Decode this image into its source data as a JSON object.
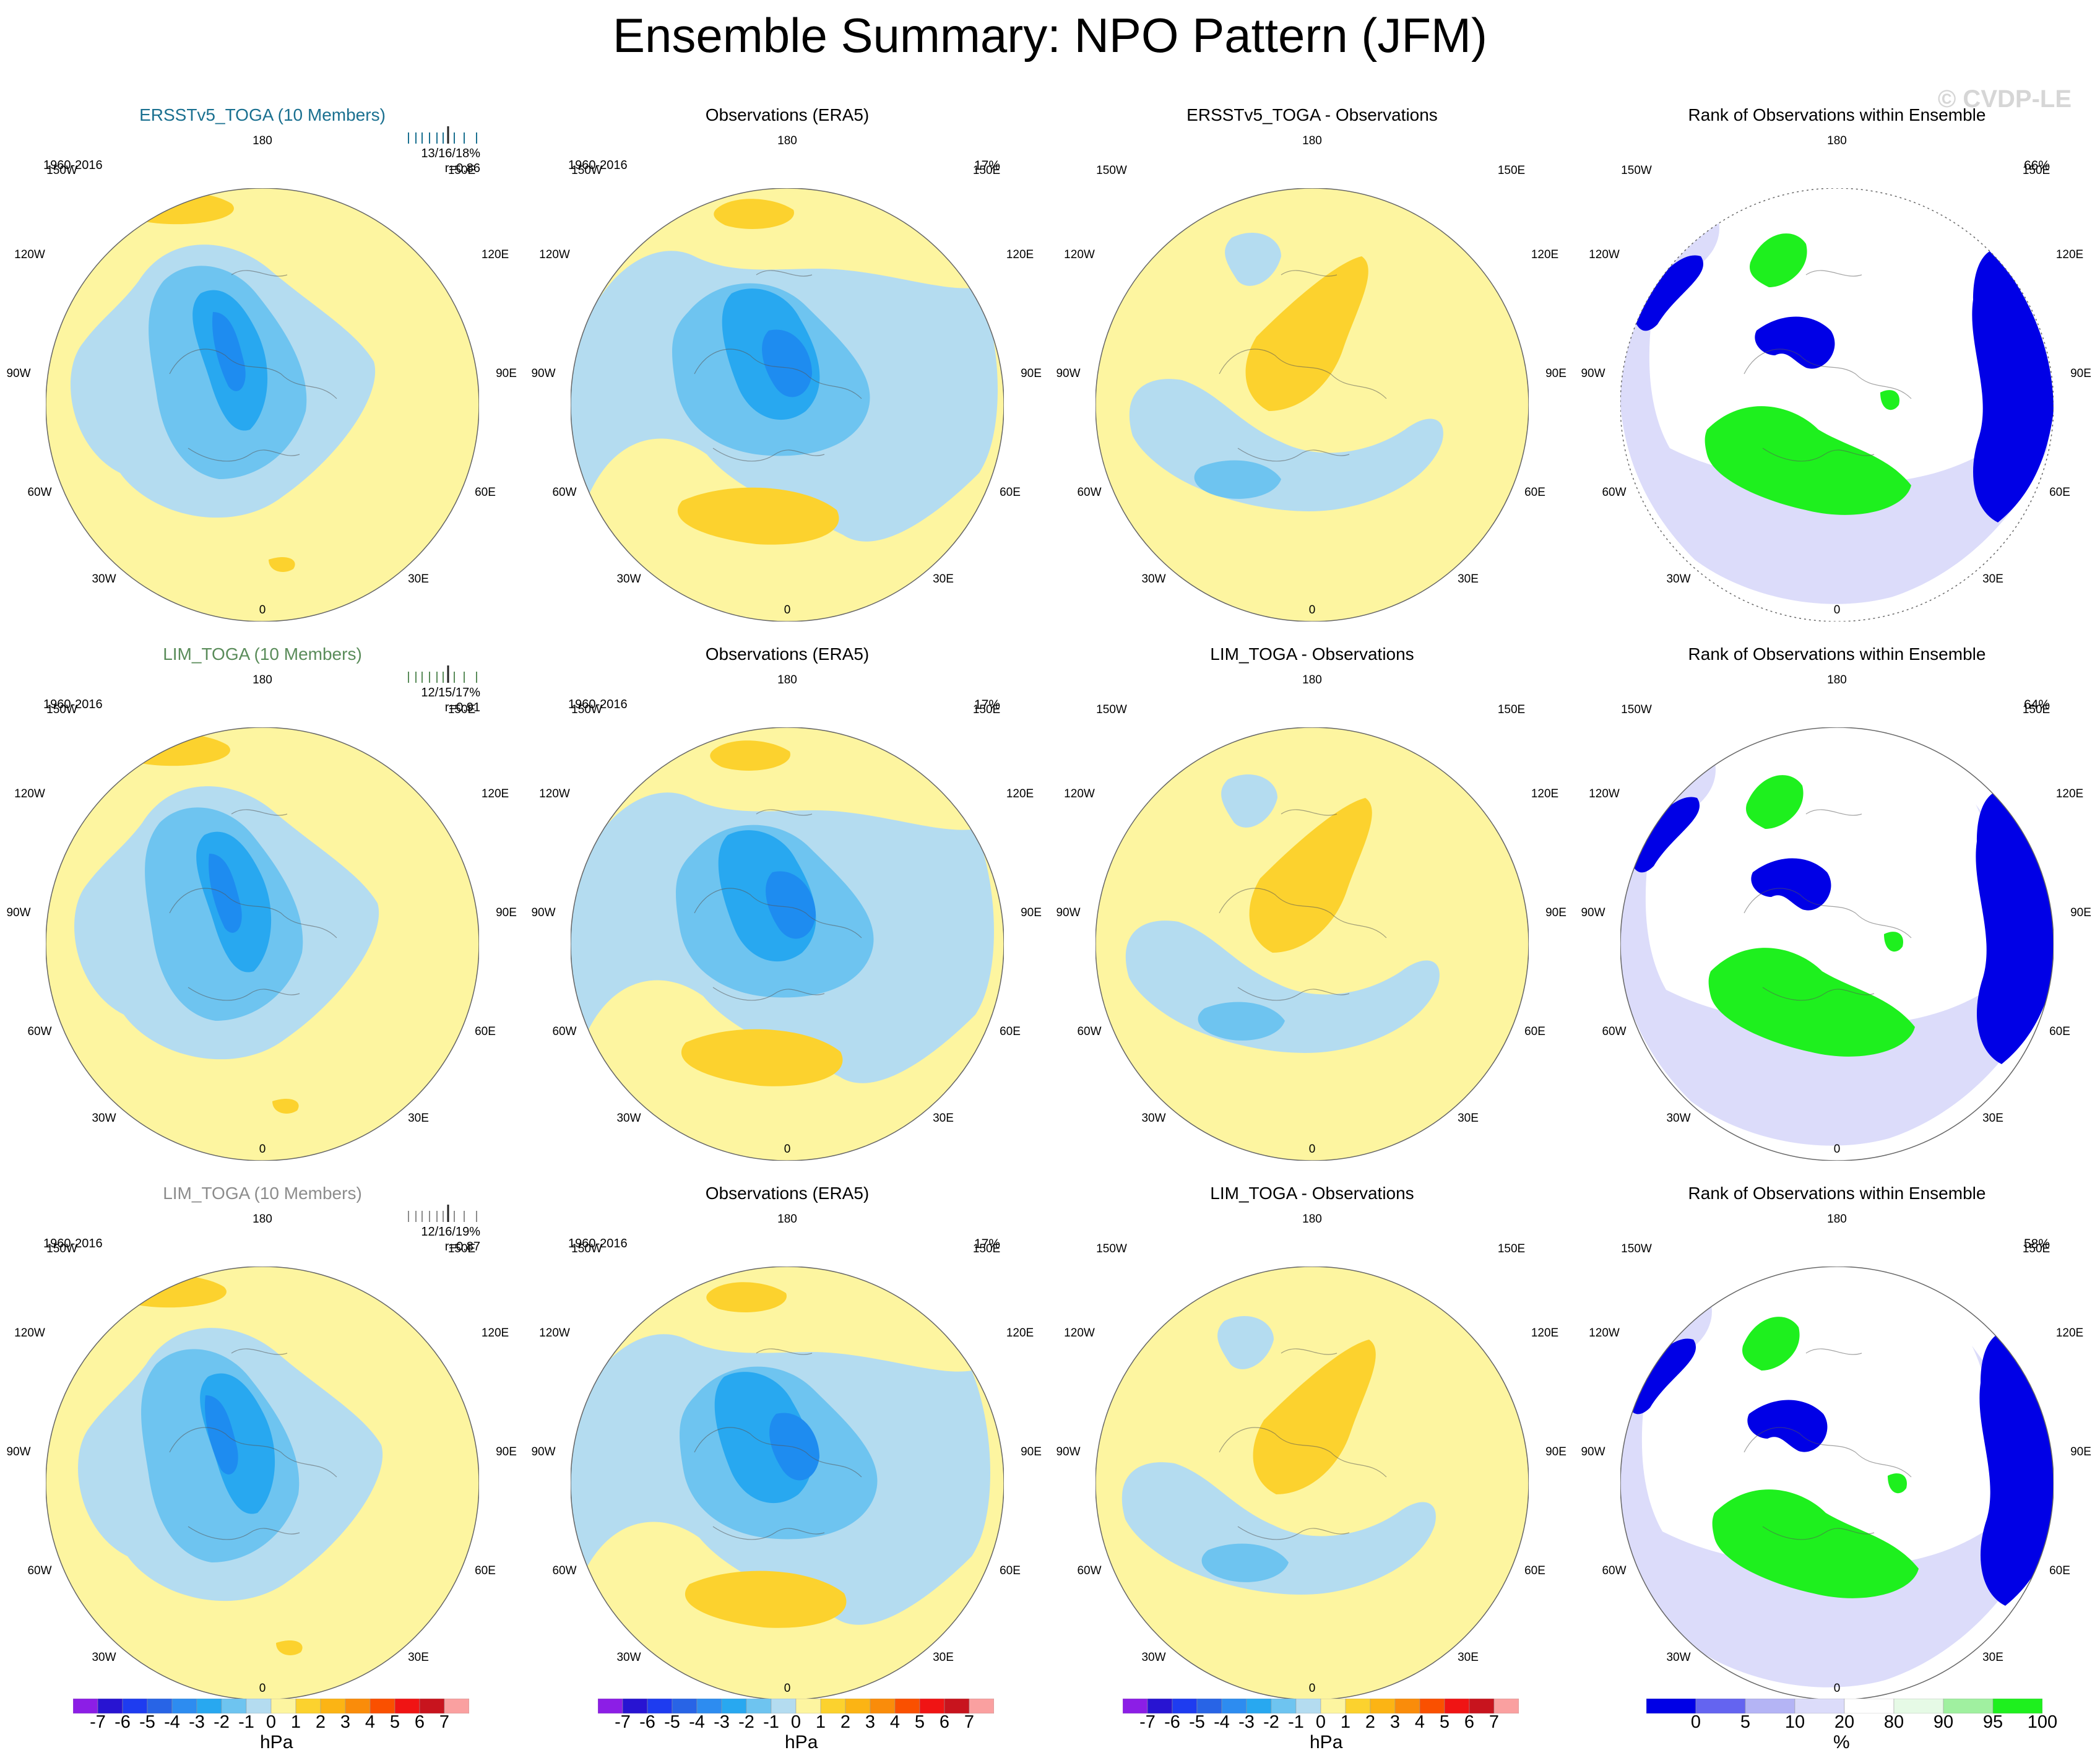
{
  "title": "Ensemble Summary: NPO Pattern (JFM)",
  "watermark": "© CVDP-LE",
  "lon_labels": [
    "180",
    "150E",
    "120E",
    "90E",
    "60E",
    "30E",
    "0",
    "30W",
    "60W",
    "90W",
    "120W",
    "150W"
  ],
  "colors": {
    "yellow": "#fdf5a0",
    "orange": "#fcd22e",
    "light_blue": "#b4dcf0",
    "mid_blue": "#6ec4f0",
    "deep_blue": "#28a8f0",
    "dark_blue": "#1e8cf0",
    "rank_blue": "#0000e6",
    "rank_lavender": "#dcdcfa",
    "rank_green": "#1ef01e"
  },
  "rows": [
    {
      "ensemble": {
        "title": "ERSSTv5_TOGA (10 Members)",
        "title_color": "#1a7090",
        "years": "1960-2016",
        "stats": "13/16/18%",
        "r": "r=0.86"
      },
      "obs": {
        "title": "Observations (ERA5)",
        "years": "1960-2016",
        "pct": "17%"
      },
      "diff": {
        "title": "ERSSTv5_TOGA - Observations"
      },
      "rank": {
        "title": "Rank of Observations within Ensemble",
        "pct": "66%"
      }
    },
    {
      "ensemble": {
        "title": "LIM_TOGA (10 Members)",
        "title_color": "#5a8c5a",
        "years": "1960-2016",
        "stats": "12/15/17%",
        "r": "r=0.91"
      },
      "obs": {
        "title": "Observations (ERA5)",
        "years": "1960-2016",
        "pct": "17%"
      },
      "diff": {
        "title": "LIM_TOGA - Observations"
      },
      "rank": {
        "title": "Rank of Observations within Ensemble",
        "pct": "64%"
      }
    },
    {
      "ensemble": {
        "title": "LIM_TOGA (10 Members)",
        "title_color": "#8c8c8c",
        "years": "1960-2016",
        "stats": "12/16/19%",
        "r": "r=0.87"
      },
      "obs": {
        "title": "Observations (ERA5)",
        "years": "1960-2016",
        "pct": "17%"
      },
      "diff": {
        "title": "LIM_TOGA - Observations"
      },
      "rank": {
        "title": "Rank of Observations within Ensemble",
        "pct": "58%"
      }
    }
  ],
  "chart_data": {
    "type": "heatmap",
    "projection": "north polar stereographic",
    "variable": "sea level pressure anomaly",
    "units": "hPa",
    "colorbar_hpa": {
      "labels": [
        "-7",
        "-6",
        "-5",
        "-4",
        "-3",
        "-2",
        "-1",
        "0",
        "1",
        "2",
        "3",
        "4",
        "5",
        "6",
        "7"
      ],
      "colors": [
        "#8c1ee6",
        "#2814d2",
        "#1e3cf0",
        "#2864e6",
        "#2d8cf0",
        "#28a8f0",
        "#6ec4f0",
        "#b4dcf0",
        "#fdf5a0",
        "#fcd22e",
        "#fcb414",
        "#fa8c0a",
        "#fa5000",
        "#f01414",
        "#c8141e",
        "#faa0a0"
      ],
      "unit": "hPa"
    },
    "colorbar_rank": {
      "labels": [
        "0",
        "5",
        "10",
        "20",
        "80",
        "90",
        "95",
        "100"
      ],
      "colors": [
        "#0000e6",
        "#6464f0",
        "#b4b4f5",
        "#dcdcfa",
        "#ffffff",
        "#e6fae6",
        "#a0f0a0",
        "#1ef01e"
      ],
      "unit": "%"
    }
  }
}
